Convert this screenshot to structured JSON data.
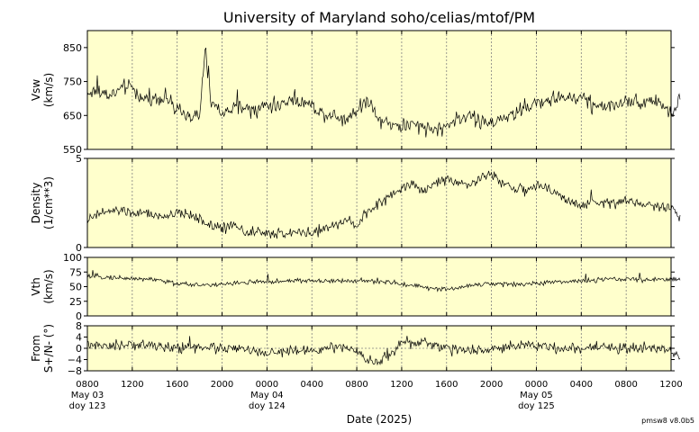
{
  "title": "University of Maryland  soho/celias/mtof/PM",
  "version": "pmsw8 v8.0b5",
  "xlabel": "Date (2025)",
  "colors": {
    "panel_bg": "#ffffcc",
    "trace": "#000000",
    "grid": "#808080"
  },
  "x_ticks": [
    "0800",
    "1200",
    "1600",
    "2000",
    "0000",
    "0400",
    "0800",
    "1200",
    "1600",
    "2000",
    "0000",
    "0400",
    "0800",
    "1200"
  ],
  "day_labels": [
    {
      "tick": 0,
      "date": "May 03",
      "doy": "doy 123"
    },
    {
      "tick": 4,
      "date": "May 04",
      "doy": "doy 124"
    },
    {
      "tick": 10,
      "date": "May 05",
      "doy": "doy 125"
    }
  ],
  "chart_data": [
    {
      "type": "line",
      "name": "vsw",
      "ylabel": [
        "Vsw",
        "(km/s)"
      ],
      "ylim": [
        550,
        900
      ],
      "yticks": [
        550,
        650,
        750,
        850
      ],
      "x_unit": "hours since 2025-05-03 08:00",
      "x_end": 52.8,
      "baseline": null,
      "points": [
        [
          0,
          715
        ],
        [
          1,
          722
        ],
        [
          2,
          708
        ],
        [
          3,
          728
        ],
        [
          4,
          735
        ],
        [
          5,
          695
        ],
        [
          6,
          700
        ],
        [
          7,
          705
        ],
        [
          8,
          660
        ],
        [
          9,
          650
        ],
        [
          10,
          640
        ],
        [
          10.5,
          850
        ],
        [
          11,
          690
        ],
        [
          12,
          655
        ],
        [
          13,
          668
        ],
        [
          14,
          675
        ],
        [
          15,
          660
        ],
        [
          16,
          685
        ],
        [
          17,
          675
        ],
        [
          18,
          700
        ],
        [
          19,
          690
        ],
        [
          20,
          680
        ],
        [
          21,
          655
        ],
        [
          22,
          650
        ],
        [
          23,
          640
        ],
        [
          24,
          665
        ],
        [
          25,
          700
        ],
        [
          26,
          640
        ],
        [
          27,
          625
        ],
        [
          28,
          618
        ],
        [
          29,
          620
        ],
        [
          30,
          612
        ],
        [
          31,
          610
        ],
        [
          32,
          615
        ],
        [
          33,
          640
        ],
        [
          34,
          655
        ],
        [
          35,
          630
        ],
        [
          36,
          625
        ],
        [
          37,
          645
        ],
        [
          38,
          650
        ],
        [
          39,
          675
        ],
        [
          40,
          685
        ],
        [
          41,
          695
        ],
        [
          42,
          705
        ],
        [
          43,
          700
        ],
        [
          44,
          705
        ],
        [
          45,
          680
        ],
        [
          46,
          680
        ],
        [
          47,
          675
        ],
        [
          48,
          700
        ],
        [
          49,
          690
        ],
        [
          50,
          695
        ],
        [
          51,
          690
        ],
        [
          52,
          650
        ],
        [
          52.8,
          700
        ]
      ],
      "noise": 22
    },
    {
      "type": "line",
      "name": "density",
      "ylabel": [
        "Density",
        "(1/cm**3)"
      ],
      "ylim": [
        0,
        5
      ],
      "yticks": [
        0,
        5
      ],
      "x_unit": "hours since 2025-05-03 08:00",
      "x_end": 52.8,
      "baseline": null,
      "points": [
        [
          0,
          1.5
        ],
        [
          1,
          1.9
        ],
        [
          2,
          2.0
        ],
        [
          3,
          2.1
        ],
        [
          4,
          1.9
        ],
        [
          5,
          1.9
        ],
        [
          6,
          1.8
        ],
        [
          7,
          1.7
        ],
        [
          8,
          1.9
        ],
        [
          9,
          1.9
        ],
        [
          10,
          1.6
        ],
        [
          11,
          1.2
        ],
        [
          12,
          1.1
        ],
        [
          13,
          1.4
        ],
        [
          14,
          0.9
        ],
        [
          15,
          0.8
        ],
        [
          16,
          0.8
        ],
        [
          17,
          0.8
        ],
        [
          18,
          0.8
        ],
        [
          19,
          0.9
        ],
        [
          20,
          0.8
        ],
        [
          21,
          1.0
        ],
        [
          22,
          1.2
        ],
        [
          23,
          1.5
        ],
        [
          24,
          1.3
        ],
        [
          25,
          2.0
        ],
        [
          26,
          2.4
        ],
        [
          27,
          3.0
        ],
        [
          28,
          3.3
        ],
        [
          29,
          3.6
        ],
        [
          30,
          3.1
        ],
        [
          31,
          3.6
        ],
        [
          32,
          3.9
        ],
        [
          33,
          3.7
        ],
        [
          34,
          3.5
        ],
        [
          35,
          3.9
        ],
        [
          36,
          4.1
        ],
        [
          37,
          3.6
        ],
        [
          38,
          3.4
        ],
        [
          39,
          3.2
        ],
        [
          40,
          3.4
        ],
        [
          41,
          3.3
        ],
        [
          42,
          3.0
        ],
        [
          43,
          2.5
        ],
        [
          44,
          2.4
        ],
        [
          45,
          2.5
        ],
        [
          46,
          2.6
        ],
        [
          47,
          2.5
        ],
        [
          48,
          2.6
        ],
        [
          49,
          2.5
        ],
        [
          50,
          2.4
        ],
        [
          51,
          2.3
        ],
        [
          52,
          2.2
        ],
        [
          52.8,
          1.7
        ]
      ],
      "noise": 0.28
    },
    {
      "type": "line",
      "name": "vth",
      "ylabel": [
        "Vth",
        "(km/s)"
      ],
      "ylim": [
        0,
        100
      ],
      "yticks": [
        0,
        25,
        50,
        75,
        100
      ],
      "x_unit": "hours since 2025-05-03 08:00",
      "x_end": 52.8,
      "baseline": null,
      "points": [
        [
          0,
          68
        ],
        [
          2,
          66
        ],
        [
          4,
          64
        ],
        [
          6,
          62
        ],
        [
          8,
          55
        ],
        [
          10,
          53
        ],
        [
          12,
          54
        ],
        [
          14,
          57
        ],
        [
          16,
          58
        ],
        [
          18,
          60
        ],
        [
          20,
          60
        ],
        [
          22,
          59
        ],
        [
          24,
          60
        ],
        [
          26,
          59
        ],
        [
          28,
          55
        ],
        [
          29,
          52
        ],
        [
          30,
          50
        ],
        [
          31,
          46
        ],
        [
          32,
          45
        ],
        [
          33,
          48
        ],
        [
          34,
          52
        ],
        [
          36,
          55
        ],
        [
          38,
          54
        ],
        [
          40,
          56
        ],
        [
          42,
          58
        ],
        [
          44,
          60
        ],
        [
          46,
          62
        ],
        [
          48,
          63
        ],
        [
          50,
          62
        ],
        [
          52,
          62
        ],
        [
          52.8,
          62
        ]
      ],
      "noise": 4
    },
    {
      "type": "line",
      "name": "from",
      "ylabel": [
        "From",
        "S+/N- (°)"
      ],
      "ylim": [
        -8,
        8
      ],
      "yticks": [
        -8,
        -4,
        0,
        4,
        8
      ],
      "yticklabels": [
        "−8",
        "−4",
        "0",
        "4",
        "8"
      ],
      "x_unit": "hours since 2025-05-03 08:00",
      "x_end": 52.8,
      "baseline": 0,
      "points": [
        [
          0,
          1
        ],
        [
          2,
          0.5
        ],
        [
          4,
          1.5
        ],
        [
          6,
          1
        ],
        [
          8,
          0
        ],
        [
          10,
          0.5
        ],
        [
          12,
          0
        ],
        [
          14,
          -0.5
        ],
        [
          16,
          -2
        ],
        [
          18,
          -1
        ],
        [
          20,
          -1
        ],
        [
          22,
          0.5
        ],
        [
          24,
          -1
        ],
        [
          25,
          -4
        ],
        [
          26,
          -5
        ],
        [
          27,
          -2
        ],
        [
          28,
          2
        ],
        [
          29,
          2
        ],
        [
          30,
          2.5
        ],
        [
          31,
          1
        ],
        [
          32,
          0
        ],
        [
          33,
          -1
        ],
        [
          34,
          -1
        ],
        [
          36,
          -0.5
        ],
        [
          38,
          1
        ],
        [
          40,
          1
        ],
        [
          42,
          0
        ],
        [
          44,
          0
        ],
        [
          46,
          1
        ],
        [
          48,
          -0.5
        ],
        [
          50,
          0
        ],
        [
          52,
          -1.5
        ],
        [
          52.8,
          -3
        ]
      ],
      "noise": 1.8
    }
  ]
}
